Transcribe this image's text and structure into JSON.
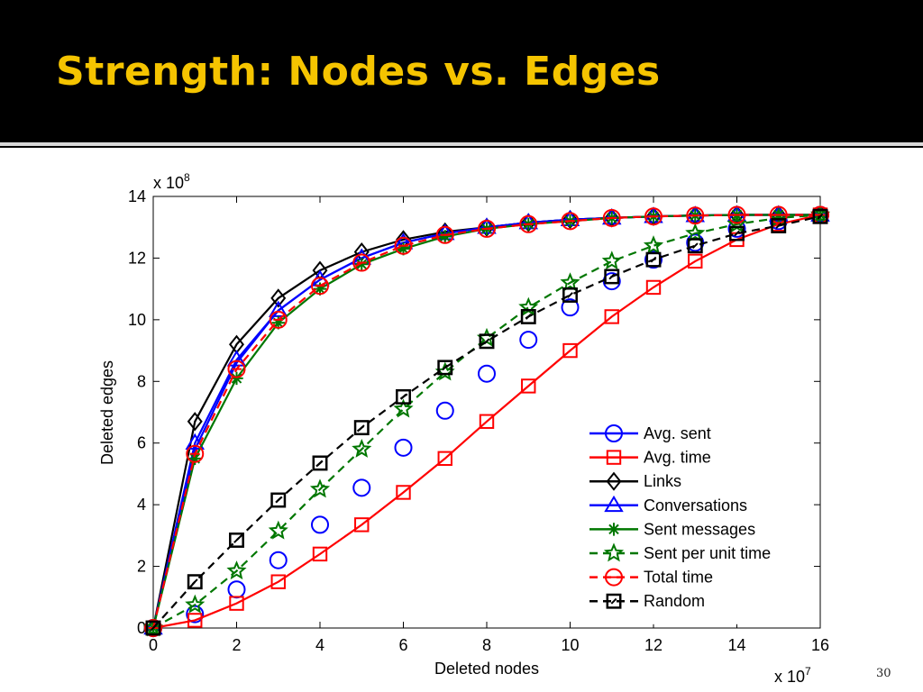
{
  "slide": {
    "title": "Strength: Nodes vs. Edges",
    "number": "30"
  },
  "chart_data": {
    "type": "line",
    "xlabel": "Deleted nodes",
    "ylabel": "Deleted edges",
    "x_exponent_label": "x 10",
    "x_exponent_power": "7",
    "y_exponent_label": "x 10",
    "y_exponent_power": "8",
    "xlim": [
      0,
      16
    ],
    "ylim": [
      0,
      14
    ],
    "xticks": [
      0,
      2,
      4,
      6,
      8,
      10,
      12,
      14,
      16
    ],
    "yticks": [
      0,
      2,
      4,
      6,
      8,
      10,
      12,
      14
    ],
    "grid": false,
    "legend_position": "bottom-right",
    "x": [
      0,
      1,
      2,
      3,
      4,
      5,
      6,
      7,
      8,
      9,
      10,
      11,
      12,
      13,
      14,
      15,
      16
    ],
    "series": [
      {
        "name": "Avg. sent",
        "color": "#0000ff",
        "dash": "solid",
        "marker": "circle",
        "values": [
          0,
          5.8,
          8.6,
          10.3,
          11.3,
          12.0,
          12.5,
          12.8,
          13.0,
          13.15,
          13.25,
          13.3,
          13.35,
          13.38,
          13.4,
          13.4,
          13.4
        ],
        "marker_values": [
          0,
          0.45,
          1.25,
          2.2,
          3.35,
          4.55,
          5.85,
          7.05,
          8.25,
          9.35,
          10.4,
          11.25,
          11.95,
          12.5,
          12.95,
          13.2,
          13.4
        ]
      },
      {
        "name": "Avg. time",
        "color": "#ff0000",
        "dash": "solid",
        "marker": "square",
        "values": [
          0,
          0.25,
          0.8,
          1.5,
          2.4,
          3.35,
          4.4,
          5.5,
          6.7,
          7.85,
          9.0,
          10.1,
          11.05,
          11.9,
          12.6,
          13.1,
          13.4
        ]
      },
      {
        "name": "Links",
        "color": "#000000",
        "dash": "solid",
        "marker": "diamond",
        "values": [
          0,
          6.7,
          9.2,
          10.7,
          11.6,
          12.2,
          12.6,
          12.85,
          13.0,
          13.15,
          13.25,
          13.3,
          13.35,
          13.38,
          13.4,
          13.4,
          13.4
        ]
      },
      {
        "name": "Conversations",
        "color": "#0000ff",
        "dash": "solid",
        "marker": "triangle",
        "values": [
          0,
          6.0,
          8.7,
          10.3,
          11.3,
          12.0,
          12.5,
          12.8,
          13.0,
          13.15,
          13.25,
          13.3,
          13.35,
          13.38,
          13.4,
          13.4,
          13.4
        ]
      },
      {
        "name": "Sent messages",
        "color": "#007700",
        "dash": "solid",
        "marker": "asterisk",
        "values": [
          0,
          5.5,
          8.1,
          9.9,
          11.0,
          11.8,
          12.3,
          12.7,
          12.95,
          13.1,
          13.2,
          13.3,
          13.35,
          13.38,
          13.4,
          13.4,
          13.4
        ]
      },
      {
        "name": "Sent per unit time",
        "color": "#007700",
        "dash": "dashed",
        "marker": "star",
        "values": [
          0,
          0.75,
          1.85,
          3.15,
          4.5,
          5.8,
          7.1,
          8.3,
          9.4,
          10.4,
          11.2,
          11.9,
          12.4,
          12.8,
          13.1,
          13.3,
          13.4
        ]
      },
      {
        "name": "Total time",
        "color": "#ff0000",
        "dash": "dashed",
        "marker": "circle-line",
        "values": [
          0,
          5.65,
          8.4,
          10.0,
          11.1,
          11.85,
          12.4,
          12.75,
          12.95,
          13.1,
          13.2,
          13.3,
          13.35,
          13.38,
          13.4,
          13.4,
          13.4
        ]
      },
      {
        "name": "Random",
        "color": "#000000",
        "dash": "dashed",
        "marker": "square-line",
        "values": [
          0,
          1.5,
          2.85,
          4.15,
          5.35,
          6.5,
          7.5,
          8.45,
          9.3,
          10.1,
          10.8,
          11.4,
          11.95,
          12.4,
          12.8,
          13.05,
          13.35
        ]
      }
    ]
  }
}
